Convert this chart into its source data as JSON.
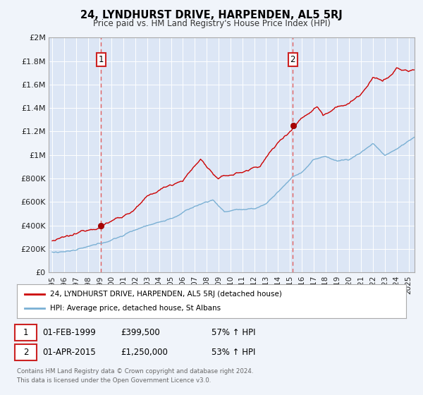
{
  "title": "24, LYNDHURST DRIVE, HARPENDEN, AL5 5RJ",
  "subtitle": "Price paid vs. HM Land Registry's House Price Index (HPI)",
  "background_color": "#f0f4fa",
  "plot_bg_color": "#dce6f5",
  "sale1": {
    "date_num": 1999.12,
    "price": 399500,
    "label": "1",
    "date_str": "01-FEB-1999",
    "hpi_pct": "57% ↑ HPI"
  },
  "sale2": {
    "date_num": 2015.25,
    "price": 1250000,
    "label": "2",
    "date_str": "01-APR-2015",
    "hpi_pct": "53% ↑ HPI"
  },
  "xmin": 1994.7,
  "xmax": 2025.5,
  "ymin": 0,
  "ymax": 2000000,
  "yticks": [
    0,
    200000,
    400000,
    600000,
    800000,
    1000000,
    1200000,
    1400000,
    1600000,
    1800000,
    2000000
  ],
  "ytick_labels": [
    "£0",
    "£200K",
    "£400K",
    "£600K",
    "£800K",
    "£1M",
    "£1.2M",
    "£1.4M",
    "£1.6M",
    "£1.8M",
    "£2M"
  ],
  "xticks": [
    1995,
    1996,
    1997,
    1998,
    1999,
    2000,
    2001,
    2002,
    2003,
    2004,
    2005,
    2006,
    2007,
    2008,
    2009,
    2010,
    2011,
    2012,
    2013,
    2014,
    2015,
    2016,
    2017,
    2018,
    2019,
    2020,
    2021,
    2022,
    2023,
    2024,
    2025
  ],
  "legend_line1": "24, LYNDHURST DRIVE, HARPENDEN, AL5 5RJ (detached house)",
  "legend_line2": "HPI: Average price, detached house, St Albans",
  "footer1": "Contains HM Land Registry data © Crown copyright and database right 2024.",
  "footer2": "This data is licensed under the Open Government Licence v3.0.",
  "line_color_red": "#cc0000",
  "line_color_blue": "#7ab0d4",
  "vline_color": "#e06060",
  "dot_color_red": "#aa0000",
  "box_color": "#cc2222",
  "legend_edge": "#aaaaaa",
  "spine_color": "#aaaaaa",
  "grid_color": "#ffffff",
  "tick_label_color": "#222222",
  "footer_color": "#666666"
}
